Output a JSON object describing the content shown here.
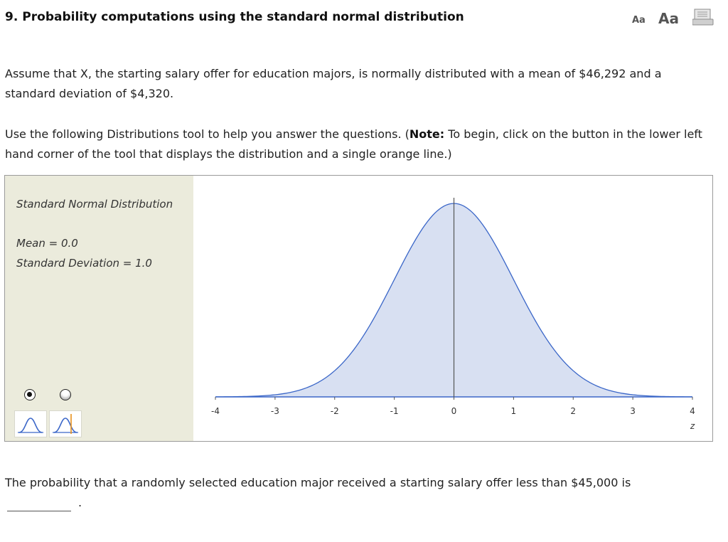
{
  "header": {
    "number": "9.",
    "title": "Probability computations using the standard normal distribution",
    "font_small": "Aa",
    "font_large": "Aa"
  },
  "problem": {
    "paragraph1": "Assume that X, the starting salary offer for education majors, is normally distributed with a mean of $46,292 and a standard deviation of $4,320.",
    "paragraph2_start": "Use the following Distributions tool to help you answer the questions. (",
    "paragraph2_bold": "Note:",
    "paragraph2_end": " To begin, click on the button in the lower left hand corner of the tool that displays the distribution and a single orange line.)"
  },
  "tool": {
    "distribution_name": "Standard Normal Distribution",
    "mean_text": "Mean = 0.0",
    "sd_text": "Standard Deviation = 1.0",
    "selected_radio": 0,
    "colors": {
      "curve": "#3a66c8",
      "fill": "#d8e0f2",
      "orange_line": "#e8901a",
      "panel": "#ebebdc"
    }
  },
  "chart_data": {
    "type": "area",
    "title": "",
    "xlabel": "z",
    "ylabel": "",
    "mean": 0.0,
    "sd": 1.0,
    "xlim": [
      -4,
      4
    ],
    "ticks": [
      "-4",
      "-3",
      "-2",
      "-1",
      "0",
      "1",
      "2",
      "3",
      "4"
    ],
    "center_line": 0
  },
  "question": {
    "text": "The probability that a randomly selected education major received a starting salary offer less than $45,000 is",
    "answer_value": "",
    "period": "."
  }
}
